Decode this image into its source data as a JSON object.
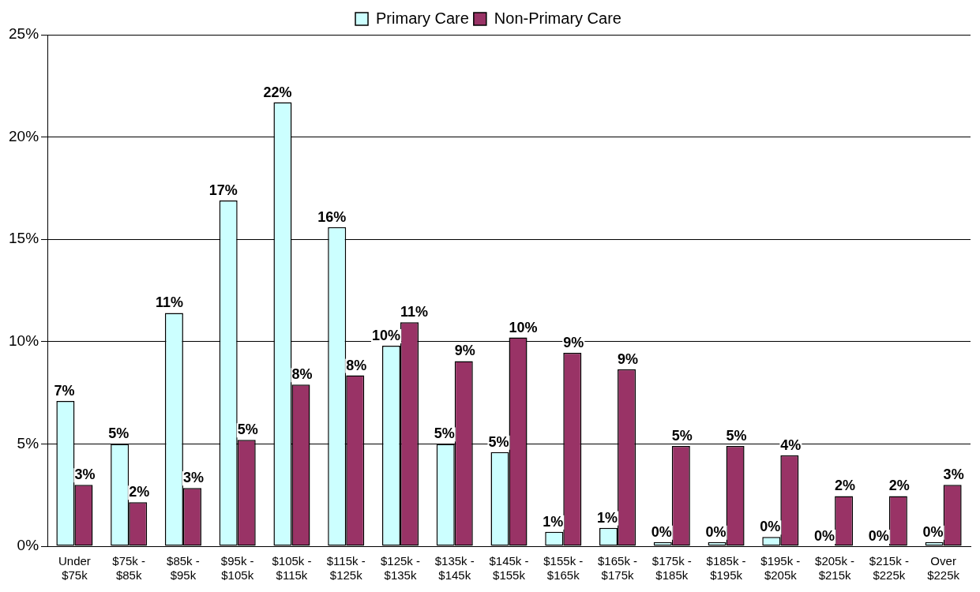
{
  "chart_data": {
    "type": "bar",
    "categories": [
      "Under $75k",
      "$75k - $85k",
      "$85k - $95k",
      "$95k - $105k",
      "$105k - $115k",
      "$115k - $125k",
      "$125k - $135k",
      "$135k - $145k",
      "$145k - $155k",
      "$155k - $165k",
      "$165k - $175k",
      "$175k - $185k",
      "$185k - $195k",
      "$195k - $205k",
      "$205k - $215k",
      "$215k - $225k",
      "Over $225k"
    ],
    "series": [
      {
        "name": "Primary Care",
        "color": "#ccffff",
        "values": [
          7.1,
          5.0,
          11.4,
          16.9,
          21.7,
          15.6,
          9.8,
          5.0,
          4.6,
          0.7,
          0.9,
          0.2,
          0.2,
          0.45,
          0,
          0,
          0.2
        ],
        "value_labels": [
          "7%",
          "5%",
          "11%",
          "17%",
          "22%",
          "16%",
          "10%",
          "5%",
          "5%",
          "1%",
          "1%",
          "0%",
          "0%",
          "0%",
          "0%",
          "0%",
          "0%"
        ]
      },
      {
        "name": "Non-Primary Care",
        "color": "#993366",
        "values": [
          3.0,
          2.15,
          2.85,
          5.2,
          7.9,
          8.35,
          10.95,
          9.05,
          10.2,
          9.45,
          8.65,
          4.9,
          4.9,
          4.45,
          2.45,
          2.45,
          3.0
        ],
        "value_labels": [
          "3%",
          "2%",
          "3%",
          "5%",
          "8%",
          "8%",
          "11%",
          "9%",
          "10%",
          "9%",
          "9%",
          "5%",
          "5%",
          "4%",
          "2%",
          "2%",
          "3%"
        ]
      }
    ],
    "ylim": [
      0,
      25
    ],
    "yticks": [
      {
        "value": 0,
        "label": "0%"
      },
      {
        "value": 5,
        "label": "5%"
      },
      {
        "value": 10,
        "label": "10%"
      },
      {
        "value": 15,
        "label": "15%"
      },
      {
        "value": 20,
        "label": "20%"
      },
      {
        "value": 25,
        "label": "25%"
      }
    ],
    "grid": "y",
    "legend": "top"
  }
}
